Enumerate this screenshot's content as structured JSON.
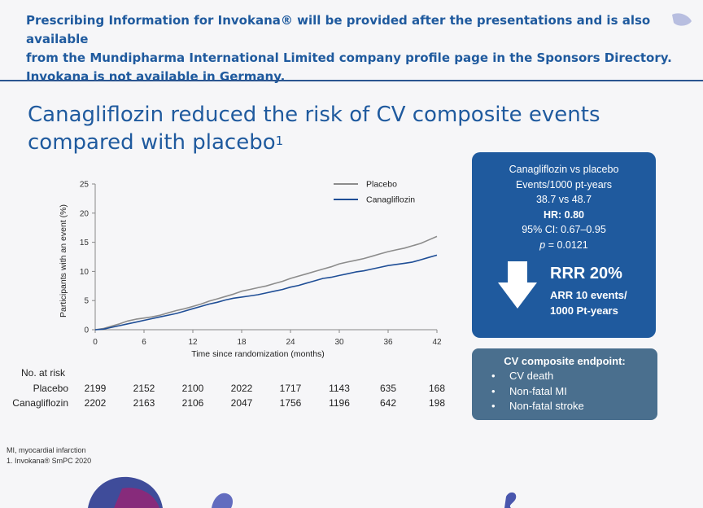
{
  "banner": {
    "line1": "Prescribing Information for Invokana® will be provided after the presentations and is also available",
    "line2": "from the Mundipharma International Limited company profile page in the Sponsors Directory.",
    "line3": "Invokana is not available in Germany."
  },
  "slide": {
    "title_line1": "Canagliflozin reduced the risk of CV composite events",
    "title_line2": "compared with placebo",
    "title_ref": "1"
  },
  "chart_data": {
    "type": "line",
    "xlabel": "Time since randomization (months)",
    "ylabel": "Participants with an event (%)",
    "xlim": [
      0,
      42
    ],
    "ylim": [
      0,
      25
    ],
    "xticks": [
      0,
      6,
      12,
      18,
      24,
      30,
      36,
      42
    ],
    "yticks": [
      0,
      5,
      10,
      15,
      20,
      25
    ],
    "legend_position": "top-right",
    "grid": false,
    "series": [
      {
        "name": "Placebo",
        "color": "#8c8c8c",
        "x": [
          0,
          1,
          2,
          3,
          4,
          5,
          6,
          7,
          8,
          9,
          10,
          11,
          12,
          13,
          14,
          15,
          16,
          17,
          18,
          19,
          20,
          21,
          22,
          23,
          24,
          25,
          26,
          27,
          28,
          29,
          30,
          31,
          32,
          33,
          34,
          35,
          36,
          37,
          38,
          39,
          40,
          41,
          42
        ],
        "y": [
          0,
          0.2,
          0.6,
          1.0,
          1.5,
          1.8,
          2.0,
          2.2,
          2.5,
          2.9,
          3.3,
          3.6,
          4.0,
          4.4,
          4.9,
          5.3,
          5.7,
          6.1,
          6.6,
          6.9,
          7.2,
          7.5,
          7.9,
          8.3,
          8.8,
          9.2,
          9.6,
          10.0,
          10.4,
          10.8,
          11.3,
          11.6,
          11.9,
          12.2,
          12.6,
          13.0,
          13.4,
          13.7,
          14.0,
          14.4,
          14.8,
          15.4,
          16.0
        ]
      },
      {
        "name": "Canagliflozin",
        "color": "#1f4e96",
        "x": [
          0,
          1,
          2,
          3,
          4,
          5,
          6,
          7,
          8,
          9,
          10,
          11,
          12,
          13,
          14,
          15,
          16,
          17,
          18,
          19,
          20,
          21,
          22,
          23,
          24,
          25,
          26,
          27,
          28,
          29,
          30,
          31,
          32,
          33,
          34,
          35,
          36,
          37,
          38,
          39,
          40,
          41,
          42
        ],
        "y": [
          0,
          0.1,
          0.4,
          0.7,
          1.0,
          1.3,
          1.6,
          1.9,
          2.2,
          2.5,
          2.8,
          3.2,
          3.6,
          4.0,
          4.4,
          4.7,
          5.1,
          5.4,
          5.6,
          5.8,
          6.0,
          6.3,
          6.6,
          6.9,
          7.3,
          7.6,
          8.0,
          8.4,
          8.8,
          9.0,
          9.3,
          9.6,
          9.9,
          10.1,
          10.4,
          10.7,
          11.0,
          11.2,
          11.4,
          11.6,
          12.0,
          12.4,
          12.8
        ]
      }
    ]
  },
  "risk_table": {
    "header": "No. at risk",
    "rows": [
      {
        "label": "Placebo",
        "values": [
          "2199",
          "2152",
          "2100",
          "2022",
          "1717",
          "1143",
          "635",
          "168"
        ]
      },
      {
        "label": "Canagliflozin",
        "values": [
          "2202",
          "2163",
          "2106",
          "2047",
          "1756",
          "1196",
          "642",
          "198"
        ]
      }
    ]
  },
  "stats_box": {
    "line1": "Canagliflozin vs placebo",
    "line2": "Events/1000 pt-years",
    "line3": "38.7 vs 48.7",
    "hr": "HR: 0.80",
    "ci": "95% CI: 0.67–0.95",
    "p_label": "p",
    "p_value": " = 0.0121",
    "rrr": "RRR 20%",
    "arr_line1": "ARR 10 events/",
    "arr_line2": "1000 Pt-years",
    "color": "#1f5a9e"
  },
  "endpoint_box": {
    "title": "CV composite endpoint:",
    "items": [
      "CV death",
      "Non-fatal MI",
      "Non-fatal stroke"
    ],
    "color": "#4a6f8e"
  },
  "footnotes": {
    "abbr": "MI, myocardial infarction",
    "ref": "1. Invokana® SmPC 2020"
  }
}
